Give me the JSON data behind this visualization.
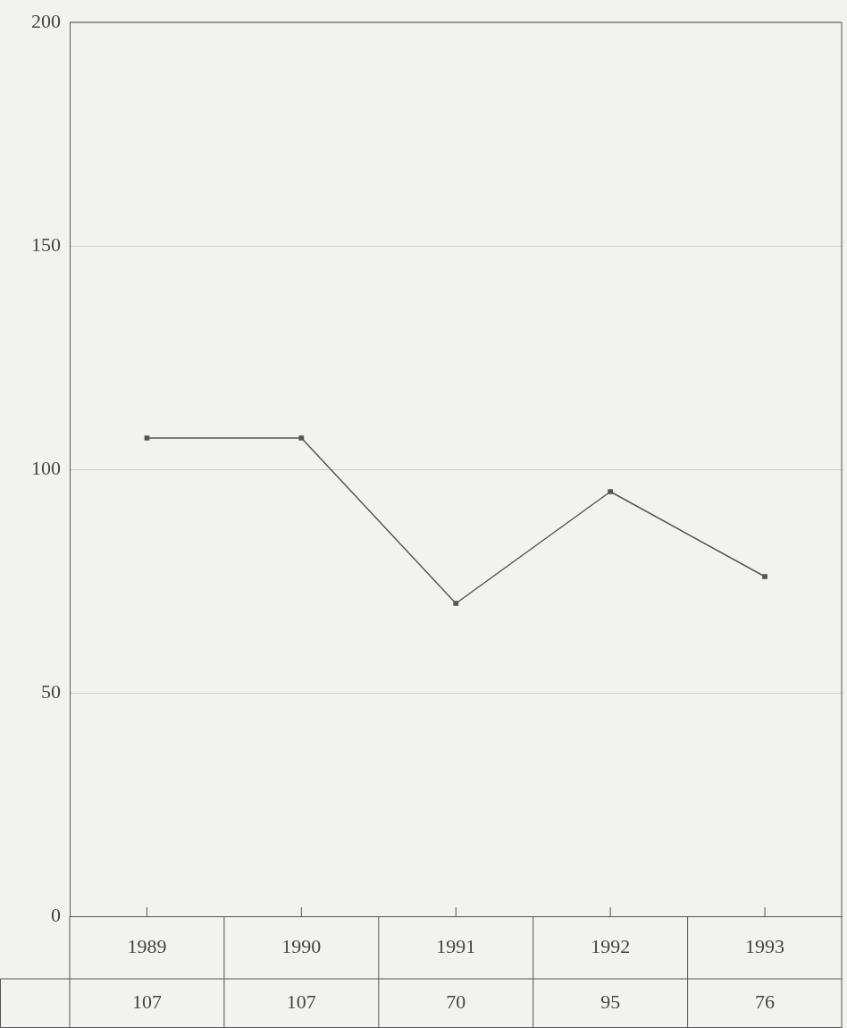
{
  "chart_data": {
    "type": "line",
    "categories": [
      "1989",
      "1990",
      "1991",
      "1992",
      "1993"
    ],
    "series": [
      {
        "color": "#555555",
        "values": [
          107,
          107,
          70,
          95,
          76
        ]
      }
    ],
    "ylim": [
      0,
      200
    ],
    "yticks": [
      0,
      50,
      100,
      150,
      200
    ],
    "grid": "y",
    "marker": "square",
    "line_style": "solid",
    "data_labels": true,
    "legend": false
  }
}
